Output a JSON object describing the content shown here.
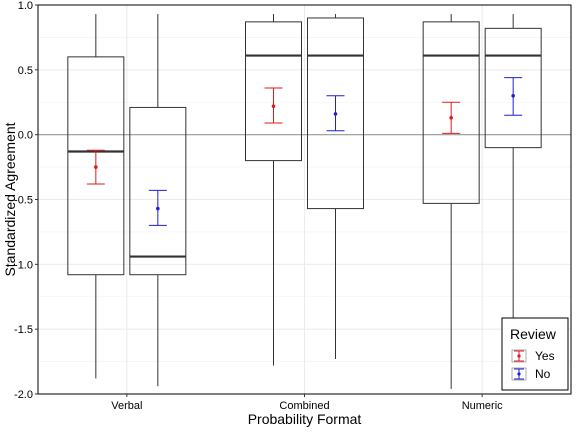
{
  "chart_data": {
    "type": "boxplot",
    "xlabel": "Probability Format",
    "ylabel": "Standardized Agreement",
    "categories": [
      "Verbal",
      "Combined",
      "Numeric"
    ],
    "ylim": [
      -2.0,
      1.0
    ],
    "yticks": [
      1.0,
      0.5,
      0.0,
      -0.5,
      -1.0,
      -1.5,
      -2.0
    ],
    "ytick_labels": [
      "1.0",
      "0.5",
      "0.0",
      "-0.5",
      "-1.0",
      "-1.5",
      "-2.0"
    ],
    "reference_line": 0.0,
    "grid": true,
    "legend": {
      "title": "Review",
      "position": "bottom-right",
      "entries": [
        {
          "label": "Yes",
          "color": "#e31a1c"
        },
        {
          "label": "No",
          "color": "#1f1fd6"
        }
      ]
    },
    "series": [
      {
        "name": "Yes",
        "color": "#e31a1c",
        "boxes": [
          {
            "whisker_low": -1.88,
            "q1": -1.08,
            "median": -0.13,
            "q3": 0.6,
            "whisker_high": 0.93
          },
          {
            "whisker_low": -1.78,
            "q1": -0.2,
            "median": 0.61,
            "q3": 0.87,
            "whisker_high": 0.93
          },
          {
            "whisker_low": -1.96,
            "q1": -0.53,
            "median": 0.61,
            "q3": 0.87,
            "whisker_high": 0.93
          }
        ],
        "means": [
          -0.25,
          0.22,
          0.13
        ],
        "ci_low": [
          -0.38,
          0.09,
          0.01
        ],
        "ci_high": [
          -0.12,
          0.36,
          0.25
        ]
      },
      {
        "name": "No",
        "color": "#1f1fd6",
        "boxes": [
          {
            "whisker_low": -1.94,
            "q1": -1.08,
            "median": -0.94,
            "q3": 0.21,
            "whisker_high": 0.93
          },
          {
            "whisker_low": -1.73,
            "q1": -0.57,
            "median": 0.61,
            "q3": 0.9,
            "whisker_high": 0.93
          },
          {
            "whisker_low": -1.41,
            "q1": -0.1,
            "median": 0.61,
            "q3": 0.82,
            "whisker_high": 0.93
          }
        ],
        "means": [
          -0.57,
          0.16,
          0.3
        ],
        "ci_low": [
          -0.7,
          0.03,
          0.15
        ],
        "ci_high": [
          -0.43,
          0.3,
          0.44
        ]
      }
    ]
  }
}
